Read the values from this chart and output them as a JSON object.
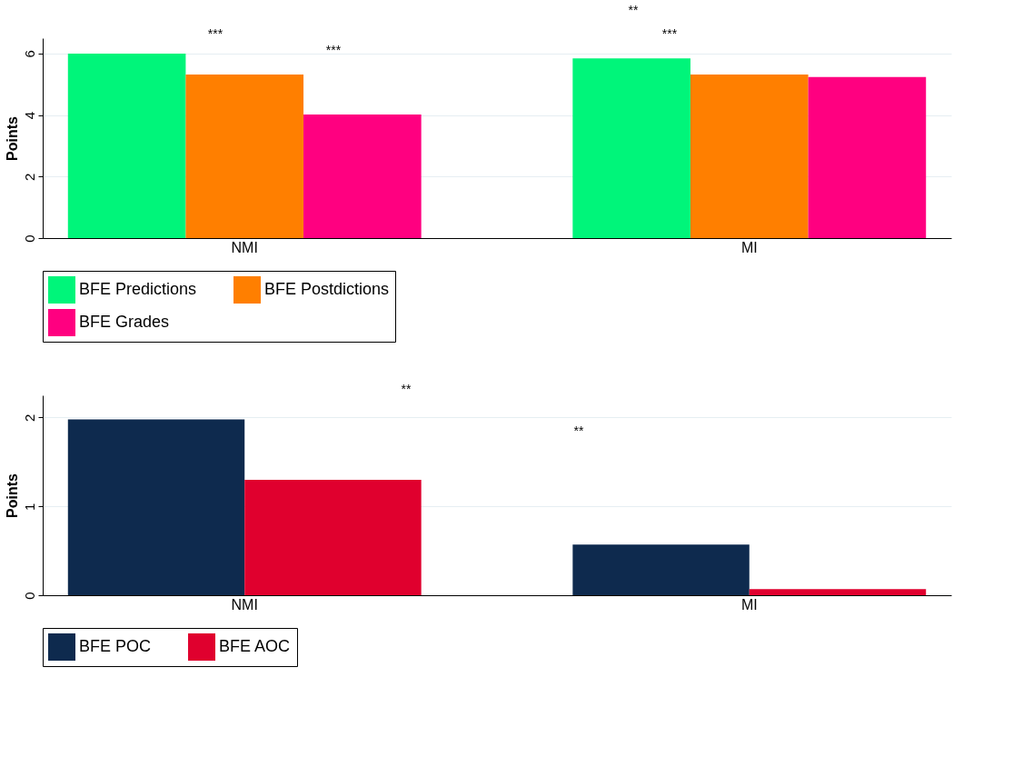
{
  "chart_data": [
    {
      "type": "bar",
      "ylabel": "Points",
      "categories": [
        "NMI",
        "MI"
      ],
      "series": [
        {
          "name": "BFE Predictions",
          "color": "#00f57a",
          "values": [
            6.0,
            5.84
          ]
        },
        {
          "name": "BFE Postdictions",
          "color": "#ff7f00",
          "values": [
            5.32,
            5.32
          ]
        },
        {
          "name": "BFE Grades",
          "color": "#ff0080",
          "values": [
            4.02,
            5.24
          ]
        }
      ],
      "ylim": [
        0,
        6.5
      ],
      "yticks": [
        0,
        2,
        4,
        6
      ],
      "grid": "y",
      "legend": "bottom",
      "annotations": [
        "***",
        "***",
        "**",
        "***"
      ]
    },
    {
      "type": "bar",
      "ylabel": "Points",
      "categories": [
        "NMI",
        "MI"
      ],
      "series": [
        {
          "name": "BFE POC",
          "color": "#0e2a4e",
          "values": [
            1.98,
            0.57
          ]
        },
        {
          "name": "BFE AOC",
          "color": "#e0002e",
          "values": [
            1.3,
            0.07
          ]
        }
      ],
      "ylim": [
        0,
        2.25
      ],
      "yticks": [
        0,
        1,
        2
      ],
      "grid": "y",
      "legend": "bottom",
      "annotations": [
        "**",
        "**"
      ]
    }
  ]
}
